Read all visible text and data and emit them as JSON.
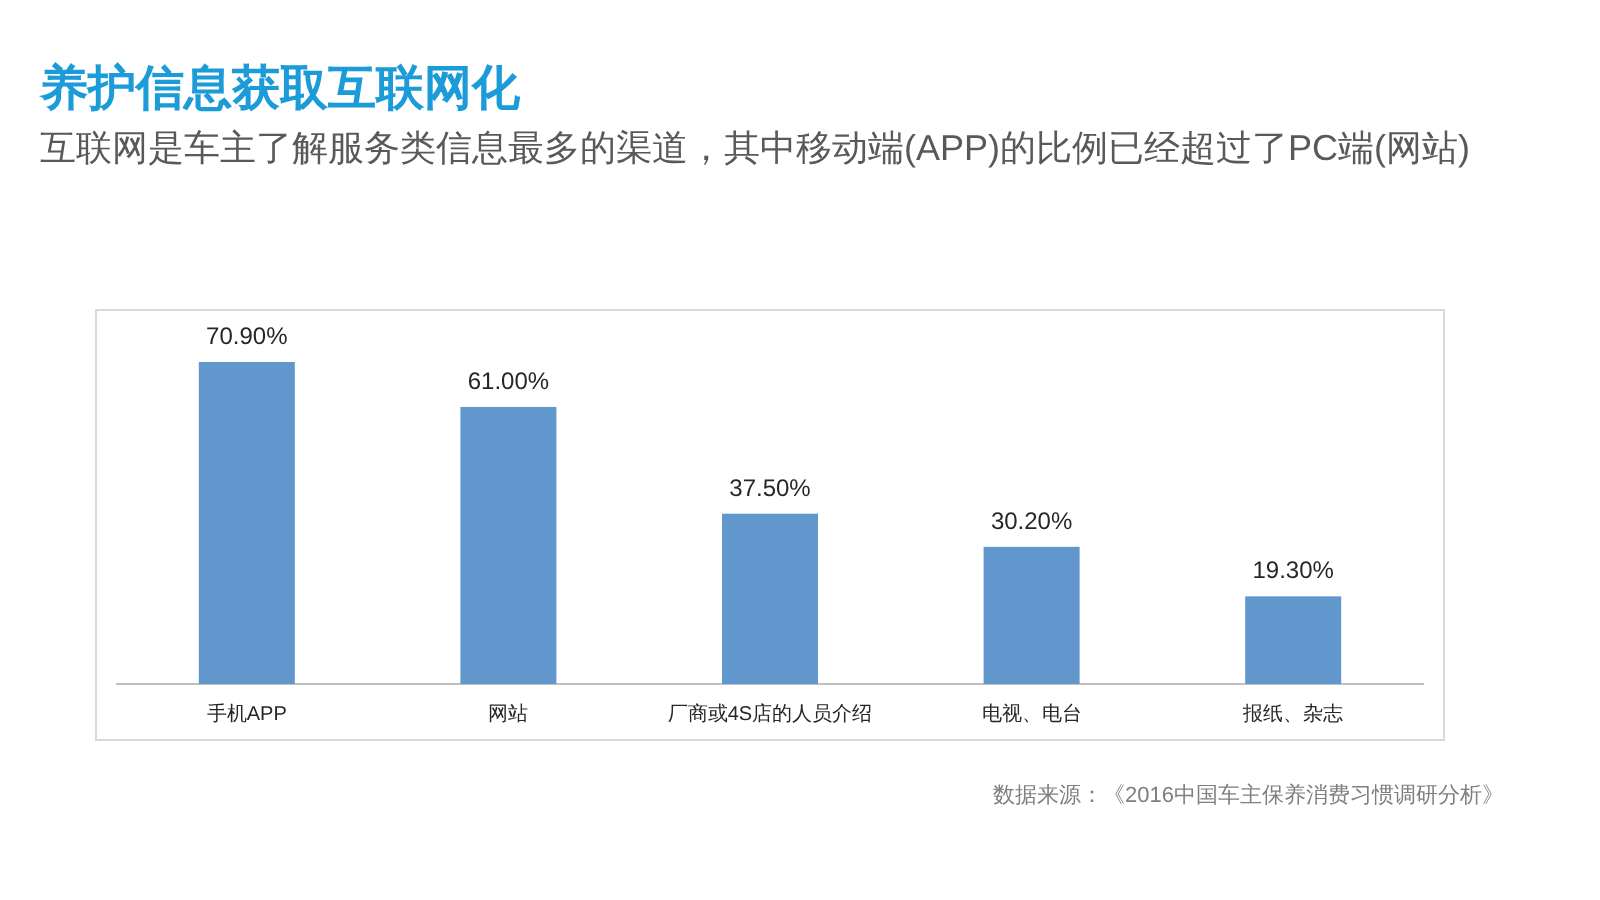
{
  "chart_data": {
    "type": "bar",
    "title": "养护信息获取互联网化",
    "subtitle": "互联网是车主了解服务类信息最多的渠道，其中移动端(APP)的比例已经超过了PC端(网站)",
    "categories": [
      "手机APP",
      "网站",
      "厂商或4S店的人员介绍",
      "电视、电台",
      "报纸、杂志"
    ],
    "values": [
      70.9,
      61.0,
      37.5,
      30.2,
      19.3
    ],
    "color": "#6197cd",
    "value_labels": [
      "70.90%",
      "61.00%",
      "37.50%",
      "30.20%",
      "19.30%"
    ],
    "annotations": [
      "数据来源：《2016中国车主保养消费习惯调研分析》"
    ]
  }
}
